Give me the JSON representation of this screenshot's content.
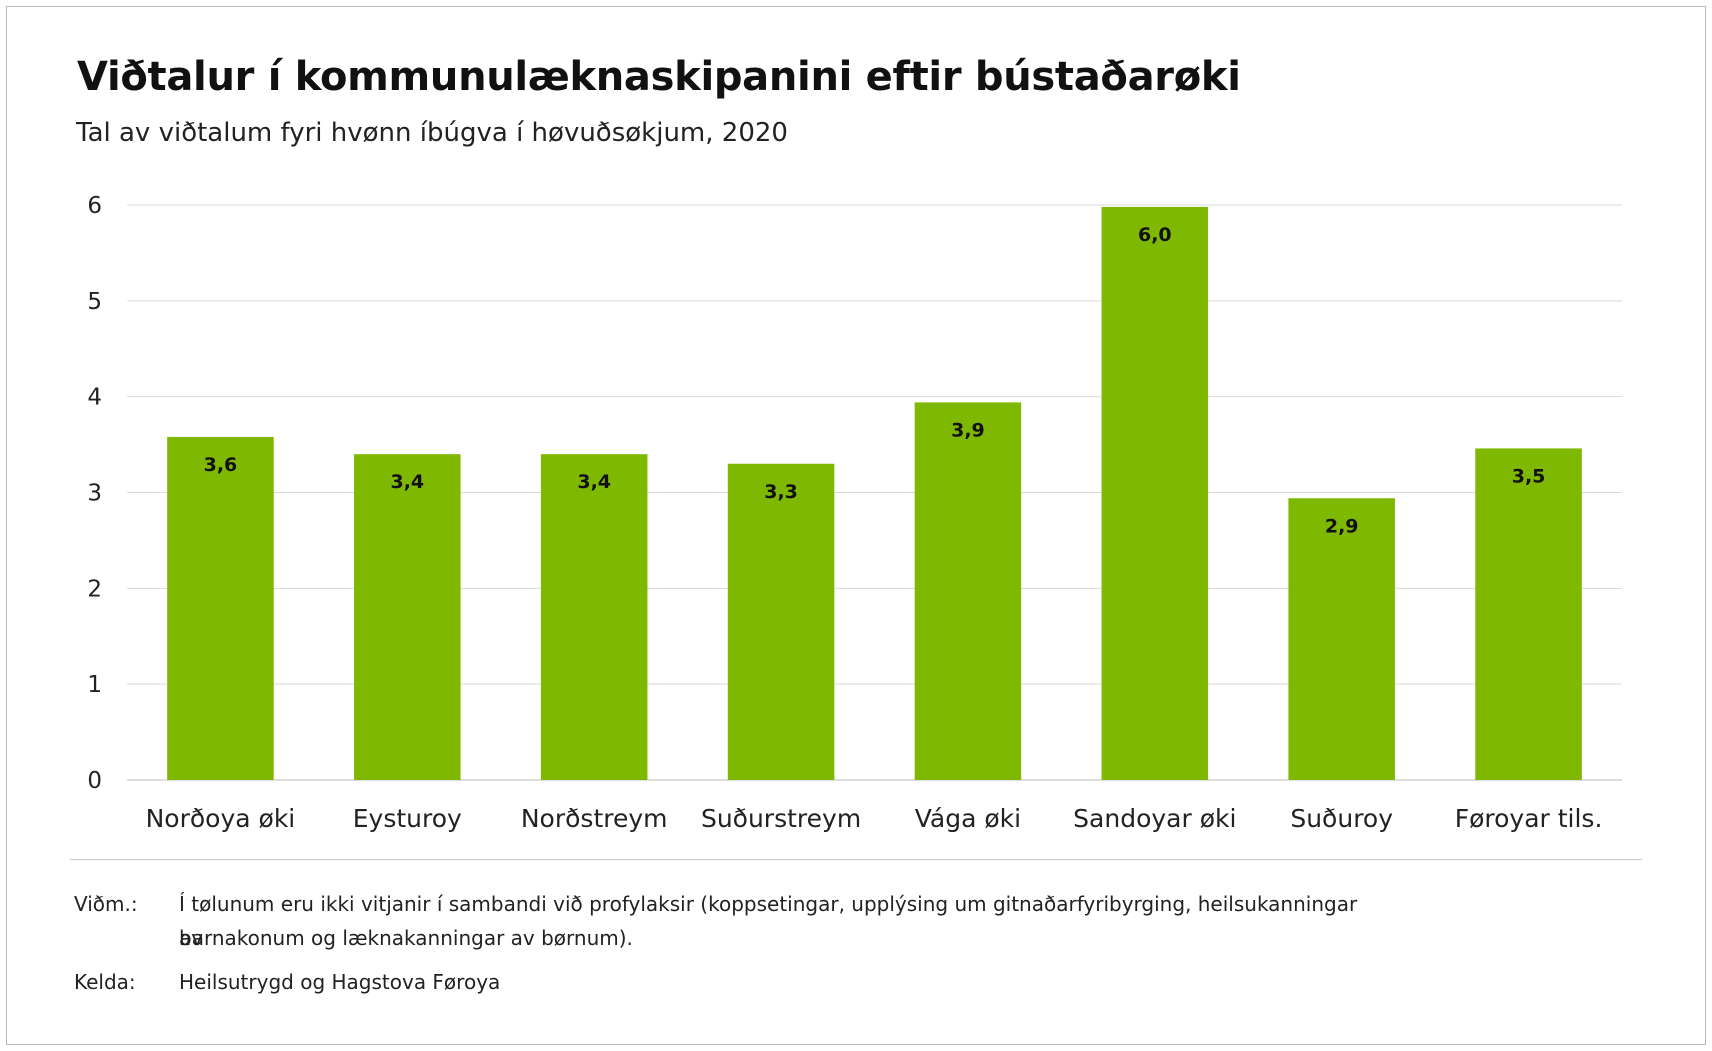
{
  "chart_data": {
    "type": "bar",
    "title": "Viðtalur í kommunulæknaskipanini eftir bústaðarøki",
    "subtitle": "Tal av viðtalum fyri hvønn íbúgva í høvuðsøkjum, 2020",
    "categories": [
      "Norðoya øki",
      "Eysturoy",
      "Norðstreym",
      "Suðurstreym",
      "Vága øki",
      "Sandoyar øki",
      "Suðuroy",
      "Føroyar tils."
    ],
    "values": [
      3.58,
      3.4,
      3.4,
      3.3,
      3.94,
      5.98,
      2.94,
      3.46
    ],
    "data_labels": [
      "3,6",
      "3,4",
      "3,4",
      "3,3",
      "3,9",
      "6,0",
      "2,9",
      "3,5"
    ],
    "xlabel": "",
    "ylabel": "",
    "ylim": [
      0,
      6
    ],
    "yticks": [
      "0",
      "1",
      "2",
      "3",
      "4",
      "5",
      "6"
    ],
    "grid": true,
    "bar_color": "#7fb800"
  },
  "notes": {
    "remark_label": "Viðm.:",
    "remark_line1": "Í tølunum eru ikki vitjanir í sambandi við profylaksir (koppsetingar, upplýsing um gitnaðarfyribyrging, heilsukanningar av",
    "remark_line2": "barnakonum og læknakanningar av børnum).",
    "source_label": "Kelda:",
    "source_text": "Heilsutrygd og Hagstova Føroya"
  }
}
